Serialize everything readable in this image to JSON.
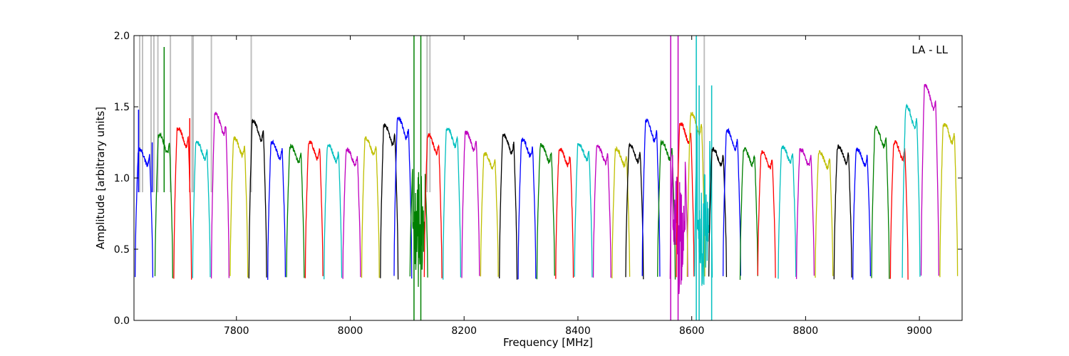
{
  "chart_data": {
    "type": "line",
    "title": "",
    "annotation": "LA - LL",
    "xlabel": "Frequency [MHz]",
    "ylabel": "Amplitude [arbitrary units]",
    "xlim": [
      7620,
      9075
    ],
    "ylim": [
      0.0,
      2.0
    ],
    "xticks": [
      7800,
      8000,
      8200,
      8400,
      8600,
      8800,
      9000
    ],
    "yticks": [
      0.0,
      0.5,
      1.0,
      1.5,
      2.0
    ],
    "xtick_labels": [
      "7800",
      "8000",
      "8200",
      "8400",
      "8600",
      "8800",
      "9000"
    ],
    "ytick_labels": [
      "0.0",
      "0.5",
      "1.0",
      "1.5",
      "2.0"
    ],
    "grid": false,
    "legend": "none",
    "description_note": "Overlapping spectral-window bandpasses (~32 MHz each), colors cycling b,g,r,c,m,y,k; grey trace is unflagged data with RFI spikes.",
    "colors": {
      "cycle": [
        "#0000ff",
        "#008000",
        "#ff0000",
        "#00bfbf",
        "#bf00bf",
        "#bfbf00",
        "#000000"
      ],
      "raw": "#c0c0c0"
    },
    "windows": [
      {
        "start": 7622,
        "peak": 1.2,
        "color": "#0000ff",
        "spikes": [
          [
            7628,
            1.48
          ],
          [
            7652,
            1.25
          ]
        ]
      },
      {
        "start": 7657,
        "peak": 1.3,
        "color": "#008000",
        "spikes": [
          [
            7673,
            1.92
          ]
        ]
      },
      {
        "start": 7690,
        "peak": 1.35,
        "color": "#ff0000",
        "spikes": [
          [
            7718,
            1.42
          ]
        ]
      },
      {
        "start": 7723,
        "peak": 1.25,
        "color": "#00bfbf"
      },
      {
        "start": 7756,
        "peak": 1.45,
        "color": "#bf00bf"
      },
      {
        "start": 7789,
        "peak": 1.28,
        "color": "#bfbf00"
      },
      {
        "start": 7822,
        "peak": 1.4,
        "color": "#000000"
      },
      {
        "start": 7855,
        "peak": 1.25,
        "color": "#0000ff"
      },
      {
        "start": 7888,
        "peak": 1.22,
        "color": "#008000"
      },
      {
        "start": 7921,
        "peak": 1.25,
        "color": "#ff0000"
      },
      {
        "start": 7954,
        "peak": 1.23,
        "color": "#00bfbf"
      },
      {
        "start": 7987,
        "peak": 1.2,
        "color": "#bf00bf"
      },
      {
        "start": 8020,
        "peak": 1.28,
        "color": "#bfbf00"
      },
      {
        "start": 8053,
        "peak": 1.37,
        "color": "#000000"
      },
      {
        "start": 8077,
        "peak": 1.42,
        "color": "#0000ff"
      },
      {
        "start": 8105,
        "peak": 1.2,
        "color": "#008000",
        "noise": true,
        "spikes": [
          [
            8112,
            2.0
          ],
          [
            8124,
            2.0
          ]
        ]
      },
      {
        "start": 8130,
        "peak": 1.3,
        "color": "#ff0000"
      },
      {
        "start": 8163,
        "peak": 1.35,
        "color": "#00bfbf"
      },
      {
        "start": 8196,
        "peak": 1.32,
        "color": "#bf00bf"
      },
      {
        "start": 8229,
        "peak": 1.17,
        "color": "#bfbf00"
      },
      {
        "start": 8262,
        "peak": 1.3,
        "color": "#000000"
      },
      {
        "start": 8295,
        "peak": 1.27,
        "color": "#0000ff"
      },
      {
        "start": 8328,
        "peak": 1.23,
        "color": "#008000"
      },
      {
        "start": 8361,
        "peak": 1.2,
        "color": "#ff0000"
      },
      {
        "start": 8394,
        "peak": 1.24,
        "color": "#00bfbf"
      },
      {
        "start": 8427,
        "peak": 1.22,
        "color": "#bf00bf"
      },
      {
        "start": 8460,
        "peak": 1.2,
        "color": "#bfbf00"
      },
      {
        "start": 8484,
        "peak": 1.23,
        "color": "#000000"
      },
      {
        "start": 8513,
        "peak": 1.4,
        "color": "#0000ff"
      },
      {
        "start": 8540,
        "peak": 1.25,
        "color": "#008000"
      },
      {
        "start": 8562,
        "peak": 1.3,
        "color": "#bf00bf",
        "noise": true,
        "spikes": [
          [
            8563,
            2.0
          ],
          [
            8576,
            2.0
          ]
        ]
      },
      {
        "start": 8573,
        "peak": 1.38,
        "color": "#ff0000"
      },
      {
        "start": 8592,
        "peak": 1.45,
        "color": "#bfbf00"
      },
      {
        "start": 8605,
        "peak": 1.5,
        "color": "#00bfbf",
        "noise": true,
        "spikes": [
          [
            8608,
            2.0
          ],
          [
            8613,
            1.65
          ],
          [
            8635,
            1.65
          ]
        ]
      },
      {
        "start": 8630,
        "peak": 1.2,
        "color": "#000000"
      },
      {
        "start": 8655,
        "peak": 1.33,
        "color": "#0000ff"
      },
      {
        "start": 8685,
        "peak": 1.2,
        "color": "#008000"
      },
      {
        "start": 8716,
        "peak": 1.18,
        "color": "#ff0000"
      },
      {
        "start": 8752,
        "peak": 1.22,
        "color": "#00bfbf"
      },
      {
        "start": 8784,
        "peak": 1.2,
        "color": "#bf00bf"
      },
      {
        "start": 8817,
        "peak": 1.18,
        "color": "#bfbf00"
      },
      {
        "start": 8850,
        "peak": 1.22,
        "color": "#000000"
      },
      {
        "start": 8883,
        "peak": 1.2,
        "color": "#0000ff"
      },
      {
        "start": 8916,
        "peak": 1.35,
        "color": "#008000"
      },
      {
        "start": 8949,
        "peak": 1.25,
        "color": "#ff0000"
      },
      {
        "start": 8970,
        "peak": 1.5,
        "color": "#00bfbf"
      },
      {
        "start": 9003,
        "peak": 1.65,
        "color": "#bf00bf"
      },
      {
        "start": 9036,
        "peak": 1.38,
        "color": "#bfbf00"
      }
    ],
    "raw_spikes": [
      7630,
      7635,
      7650,
      7655,
      7662,
      7684,
      7722,
      7724,
      7756,
      7826,
      8135,
      8140,
      8622
    ]
  }
}
